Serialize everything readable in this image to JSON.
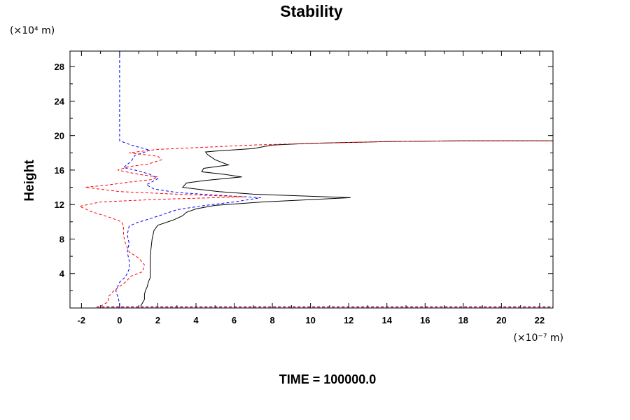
{
  "chart_data": {
    "type": "line",
    "title": "Stability",
    "ylabel": "Height",
    "y_unit": "(×10⁴ m)",
    "x_unit": "(×10⁻⁷ m)",
    "footer": "TIME = 100000.0",
    "xlim": [
      -2.6,
      22.7
    ],
    "ylim": [
      0,
      29.8
    ],
    "x_ticks": [
      -2,
      0,
      2,
      4,
      6,
      8,
      10,
      12,
      14,
      16,
      18,
      20,
      22
    ],
    "y_ticks": [
      4,
      8,
      12,
      16,
      20,
      24,
      28
    ],
    "grid": false,
    "series": [
      {
        "color": "#000000",
        "dash": "solid",
        "points": [
          [
            1.1,
            0.2
          ],
          [
            1.2,
            0.6
          ],
          [
            1.3,
            1.0
          ],
          [
            1.3,
            1.6
          ],
          [
            1.35,
            2.0
          ],
          [
            1.45,
            2.5
          ],
          [
            1.5,
            3.0
          ],
          [
            1.6,
            3.5
          ],
          [
            1.6,
            4.2
          ],
          [
            1.6,
            5.0
          ],
          [
            1.6,
            6.0
          ],
          [
            1.65,
            7.0
          ],
          [
            1.7,
            8.0
          ],
          [
            1.8,
            9.0
          ],
          [
            2.0,
            9.6
          ],
          [
            2.8,
            10.2
          ],
          [
            3.3,
            10.7
          ],
          [
            3.5,
            11.1
          ],
          [
            4.0,
            11.5
          ],
          [
            5.0,
            11.9
          ],
          [
            7.5,
            12.3
          ],
          [
            12.1,
            12.8
          ],
          [
            7.0,
            13.2
          ],
          [
            5.2,
            13.5
          ],
          [
            4.0,
            13.8
          ],
          [
            3.3,
            14.0
          ],
          [
            3.5,
            14.5
          ],
          [
            4.5,
            14.8
          ],
          [
            6.4,
            15.2
          ],
          [
            5.5,
            15.5
          ],
          [
            4.3,
            15.8
          ],
          [
            4.4,
            16.2
          ],
          [
            5.7,
            16.6
          ],
          [
            5.0,
            17.2
          ],
          [
            4.6,
            17.8
          ],
          [
            4.5,
            18.1
          ],
          [
            5.0,
            18.2
          ],
          [
            7.0,
            18.5
          ],
          [
            8.0,
            18.9
          ],
          [
            10.0,
            19.1
          ],
          [
            14.0,
            19.3
          ],
          [
            18.0,
            19.4
          ],
          [
            22.7,
            19.4
          ]
        ]
      },
      {
        "color": "#0000ff",
        "dash": "dashed",
        "points": [
          [
            0.0,
            0.2
          ],
          [
            -0.05,
            1.0
          ],
          [
            -0.2,
            2.0
          ],
          [
            0.0,
            3.0
          ],
          [
            0.3,
            3.6
          ],
          [
            0.5,
            4.5
          ],
          [
            0.5,
            5.5
          ],
          [
            0.4,
            6.5
          ],
          [
            0.5,
            7.5
          ],
          [
            0.4,
            8.5
          ],
          [
            0.5,
            9.5
          ],
          [
            0.9,
            9.9
          ],
          [
            1.5,
            10.3
          ],
          [
            2.2,
            10.8
          ],
          [
            3.0,
            11.4
          ],
          [
            4.5,
            11.9
          ],
          [
            6.0,
            12.3
          ],
          [
            7.4,
            12.8
          ],
          [
            5.0,
            13.1
          ],
          [
            3.0,
            13.4
          ],
          [
            1.8,
            13.8
          ],
          [
            1.4,
            14.3
          ],
          [
            2.0,
            15.0
          ],
          [
            1.6,
            15.5
          ],
          [
            1.0,
            15.9
          ],
          [
            0.2,
            16.3
          ],
          [
            0.6,
            17.0
          ],
          [
            0.8,
            17.7
          ],
          [
            1.6,
            18.3
          ],
          [
            0.6,
            18.9
          ],
          [
            0.0,
            19.4
          ],
          [
            0.0,
            20.0
          ],
          [
            0.0,
            24.0
          ],
          [
            0.0,
            29.8
          ]
        ]
      },
      {
        "color": "#ff0000",
        "dash": "dashed",
        "points": [
          [
            -1.0,
            0.2
          ],
          [
            -0.6,
            0.7
          ],
          [
            -0.6,
            1.3
          ],
          [
            -0.3,
            2.0
          ],
          [
            0.3,
            3.0
          ],
          [
            0.6,
            3.7
          ],
          [
            1.2,
            4.2
          ],
          [
            1.3,
            5.0
          ],
          [
            1.0,
            5.8
          ],
          [
            0.5,
            6.5
          ],
          [
            0.3,
            7.5
          ],
          [
            0.2,
            8.5
          ],
          [
            0.2,
            9.5
          ],
          [
            0.1,
            10.0
          ],
          [
            -0.5,
            10.5
          ],
          [
            -1.5,
            11.2
          ],
          [
            -2.1,
            11.8
          ],
          [
            -1.0,
            12.3
          ],
          [
            2.0,
            12.6
          ],
          [
            5.0,
            12.8
          ],
          [
            6.5,
            12.9
          ],
          [
            3.0,
            13.2
          ],
          [
            0.0,
            13.5
          ],
          [
            -1.8,
            14.0
          ],
          [
            -0.5,
            14.3
          ],
          [
            0.5,
            14.6
          ],
          [
            1.7,
            14.9
          ],
          [
            2.0,
            15.2
          ],
          [
            1.0,
            15.5
          ],
          [
            -0.1,
            16.0
          ],
          [
            0.5,
            16.4
          ],
          [
            1.5,
            16.7
          ],
          [
            2.2,
            17.2
          ],
          [
            2.0,
            17.6
          ],
          [
            0.5,
            18.0
          ],
          [
            2.0,
            18.4
          ],
          [
            3.0,
            18.5
          ],
          [
            5.0,
            18.7
          ],
          [
            7.0,
            18.9
          ],
          [
            10.0,
            19.1
          ],
          [
            14.0,
            19.3
          ],
          [
            18.0,
            19.4
          ],
          [
            22.7,
            19.4
          ]
        ]
      },
      {
        "color": "#0000ff",
        "dash": "dashed",
        "points": [
          [
            -1.2,
            0.15
          ],
          [
            22.7,
            0.15
          ]
        ]
      },
      {
        "color": "#ff0000",
        "dash": "dashed",
        "points": [
          [
            -1.2,
            0.1
          ],
          [
            22.7,
            0.1
          ]
        ]
      }
    ]
  }
}
